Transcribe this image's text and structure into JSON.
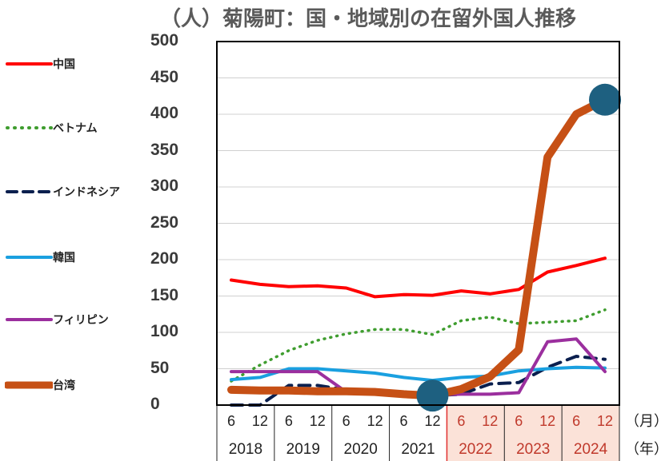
{
  "chart_data": {
    "type": "line",
    "title": "（人）菊陽町：国・地域別の在留外国人推移",
    "y_unit": "（人）",
    "title_main": "菊陽町：国・地域別の在留外国人推移",
    "ylim": [
      0,
      500
    ],
    "yticks": [
      0,
      50,
      100,
      150,
      200,
      250,
      300,
      350,
      400,
      450,
      500
    ],
    "month_label": "（月）",
    "year_label": "（年）",
    "x_months": [
      "6",
      "12",
      "6",
      "12",
      "6",
      "12",
      "6",
      "12",
      "6",
      "12",
      "6",
      "12",
      "6",
      "12"
    ],
    "x_years": [
      "2018",
      "2019",
      "2020",
      "2021",
      "2022",
      "2023",
      "2024"
    ],
    "highlight_years": [
      "2022",
      "2023",
      "2024"
    ],
    "series": [
      {
        "name": "中国",
        "color": "#ff0000",
        "style": "solid",
        "values": [
          172,
          166,
          163,
          164,
          161,
          149,
          152,
          151,
          157,
          153,
          159,
          183,
          192,
          202
        ]
      },
      {
        "name": "ベトナム",
        "color": "#3f9d2f",
        "style": "dotted",
        "values": [
          33,
          55,
          75,
          89,
          98,
          104,
          104,
          97,
          116,
          121,
          112,
          114,
          116,
          131
        ]
      },
      {
        "name": "インドネシア",
        "color": "#0a1f4e",
        "style": "dashed",
        "values": [
          0,
          0,
          27,
          27,
          21,
          21,
          17,
          13,
          15,
          29,
          31,
          52,
          67,
          63
        ]
      },
      {
        "name": "韓国",
        "color": "#1aa0e0",
        "style": "solid",
        "values": [
          35,
          38,
          50,
          50,
          47,
          44,
          38,
          34,
          38,
          40,
          47,
          50,
          52,
          51
        ]
      },
      {
        "name": "フィリピン",
        "color": "#9b2f9e",
        "style": "solid",
        "values": [
          46,
          46,
          46,
          46,
          18,
          18,
          16,
          14,
          15,
          15,
          17,
          87,
          91,
          46
        ]
      },
      {
        "name": "台湾",
        "color": "#c65015",
        "style": "solid",
        "values": [
          21,
          20,
          20,
          19,
          19,
          18,
          15,
          13,
          22,
          39,
          76,
          341,
          400,
          420
        ]
      }
    ],
    "markers": [
      {
        "series": "台湾",
        "index": 7
      },
      {
        "series": "台湾",
        "index": 13
      }
    ],
    "marker_color": "#1e6080",
    "grid": true,
    "legend_position": "left"
  }
}
